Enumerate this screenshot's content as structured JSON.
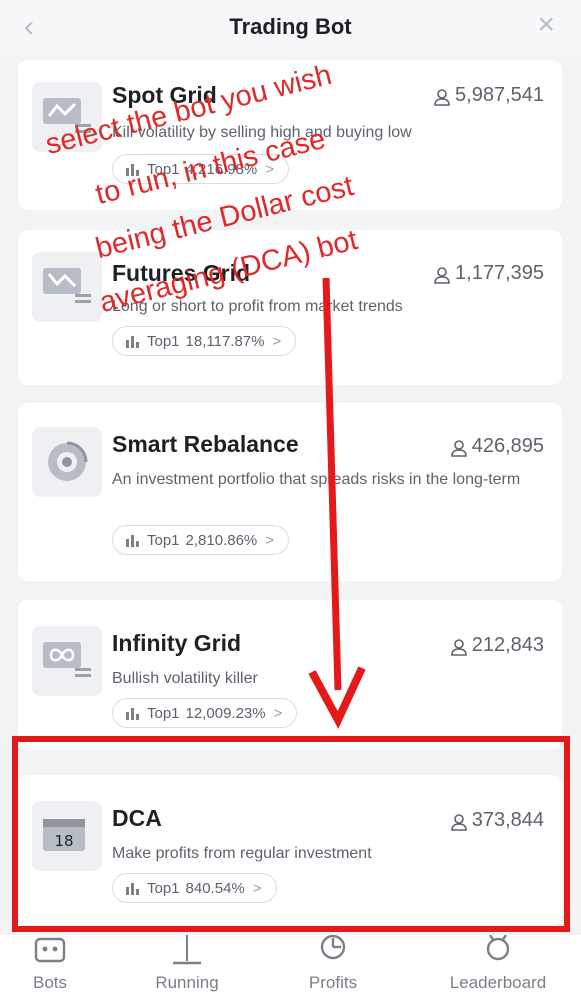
{
  "header": {
    "title": "Trading Bot",
    "back_icon": "chevron-left-icon",
    "close_icon": "close-icon"
  },
  "bots": [
    {
      "name": "Spot Grid",
      "users": "5,987,541",
      "description": "Kill volatility by selling high and buying low",
      "top_label": "Top1",
      "top_value": "4,216.98%"
    },
    {
      "name": "Futures Grid",
      "users": "1,177,395",
      "description": "Long or short to profit from market trends",
      "top_label": "Top1",
      "top_value": "18,117.87%"
    },
    {
      "name": "Smart Rebalance",
      "users": "426,895",
      "description": "An investment portfolio that spreads risks in the long-term",
      "top_label": "Top1",
      "top_value": "2,810.86%"
    },
    {
      "name": "Infinity Grid",
      "users": "212,843",
      "description": "Bullish volatility killer",
      "top_label": "Top1",
      "top_value": "12,009.23%"
    },
    {
      "name": "DCA",
      "users": "373,844",
      "description": "Make profits from regular investment",
      "top_label": "Top1",
      "top_value": "840.54%",
      "icon_text": "18"
    }
  ],
  "annotation": {
    "lines": [
      "select the bot you wish",
      "to run, in this case",
      "being the Dollar cost",
      "averaging (DCA) bot"
    ],
    "color": "#e02929"
  },
  "tabs": [
    {
      "label": "Bots",
      "icon": "robot-icon"
    },
    {
      "label": "Running",
      "icon": "running-icon"
    },
    {
      "label": "Profits",
      "icon": "pie-chart-icon"
    },
    {
      "label": "Leaderboard",
      "icon": "medal-icon"
    }
  ],
  "colors": {
    "background": "#f2f3f5",
    "card": "#ffffff",
    "highlight": "#e41a1a",
    "text": "#1e2026",
    "muted": "#5d626d"
  }
}
